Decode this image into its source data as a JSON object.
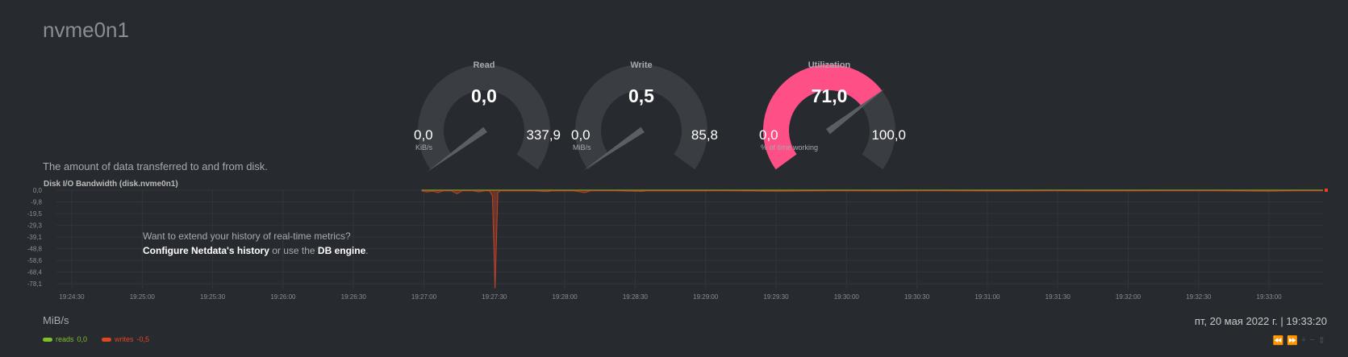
{
  "device": {
    "title": "nvme0n1"
  },
  "gauges": [
    {
      "id": "read",
      "title": "Read",
      "value": "0,0",
      "min": "0,0",
      "max": "337,9",
      "units": "KiB/s",
      "fraction": 0.0,
      "color": "#3a3d42"
    },
    {
      "id": "write",
      "title": "Write",
      "value": "0,5",
      "min": "0,0",
      "max": "85,8",
      "units": "MiB/s",
      "fraction": 0.006,
      "color": "#3a3d42"
    },
    {
      "id": "util",
      "title": "Utilization",
      "value": "71,0",
      "min": "0,0",
      "max": "100,0",
      "units": "% of time working",
      "fraction": 0.71,
      "color": "#ff4f87"
    }
  ],
  "chart": {
    "description": "The amount of data transferred to and from disk.",
    "title": "Disk I/O Bandwidth (disk.nvme0n1)",
    "units_label": "MiB/s",
    "timestamp": "пт, 20 мая 2022 г. | 19:33:20",
    "history_msg": {
      "line1": "Want to extend your history of real-time metrics?",
      "link1": "Configure Netdata's history",
      "mid": " or use the ",
      "link2": "DB engine",
      "end": "."
    },
    "legend": [
      {
        "name": "reads",
        "value": "0,0",
        "color": "#7fbf27"
      },
      {
        "name": "writes",
        "value": "-0,5",
        "color": "#e2451f"
      }
    ],
    "toolbar": [
      "⏪",
      "⏩",
      "+",
      "−",
      "⇕"
    ]
  },
  "chart_data": {
    "type": "line",
    "title": "Disk I/O Bandwidth (disk.nvme0n1)",
    "ylabel": "MiB/s",
    "ylim": [
      -82,
      0
    ],
    "yticks": [
      "0,0",
      "-9,8",
      "-19,5",
      "-29,3",
      "-39,1",
      "-48,8",
      "-58,6",
      "-68,4",
      "-78,1"
    ],
    "xticks": [
      "19:24:30",
      "19:25:00",
      "19:25:30",
      "19:26:00",
      "19:26:30",
      "19:27:00",
      "19:27:30",
      "19:28:00",
      "19:28:30",
      "19:29:00",
      "19:29:30",
      "19:30:00",
      "19:30:30",
      "19:31:00",
      "19:31:30",
      "19:32:00",
      "19:32:30",
      "19:33:00"
    ],
    "series": [
      {
        "name": "reads",
        "color": "#7fbf27",
        "points": [
          [
            0,
            0
          ],
          [
            480,
            0
          ]
        ]
      },
      {
        "name": "writes",
        "color": "#e2451f",
        "points": [
          [
            149,
            -0.5
          ],
          [
            151,
            -1.5
          ],
          [
            153,
            -0.8
          ],
          [
            155,
            -2
          ],
          [
            157,
            -0.5
          ],
          [
            160,
            -0.6
          ],
          [
            162,
            -3
          ],
          [
            164,
            -0.5
          ],
          [
            168,
            -0.5
          ],
          [
            170,
            -1.5
          ],
          [
            172,
            -0.5
          ],
          [
            174,
            -0.6
          ],
          [
            175,
            -5
          ],
          [
            176,
            -82
          ],
          [
            177,
            -2
          ],
          [
            178,
            -0.5
          ],
          [
            185,
            -0.6
          ],
          [
            190,
            -0.5
          ],
          [
            195,
            -1.2
          ],
          [
            197,
            -0.5
          ],
          [
            205,
            -0.6
          ],
          [
            209,
            -2
          ],
          [
            211,
            -0.5
          ],
          [
            220,
            -0.5
          ],
          [
            230,
            -1.0
          ],
          [
            232,
            -0.5
          ],
          [
            250,
            -0.6
          ],
          [
            260,
            -0.5
          ],
          [
            280,
            -0.8
          ],
          [
            300,
            -0.5
          ],
          [
            320,
            -0.6
          ],
          [
            340,
            -0.5
          ],
          [
            360,
            -0.7
          ],
          [
            380,
            -0.5
          ],
          [
            400,
            -0.6
          ],
          [
            420,
            -0.5
          ],
          [
            440,
            -0.5
          ],
          [
            460,
            -0.8
          ],
          [
            470,
            -0.5
          ],
          [
            480,
            -0.5
          ]
        ]
      }
    ]
  }
}
